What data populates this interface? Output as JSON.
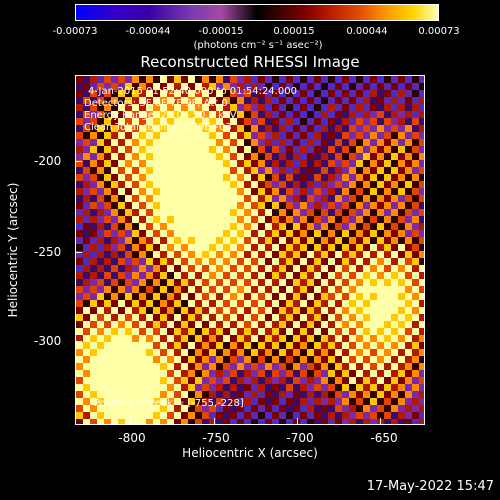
{
  "colorbar": {
    "ticks": [
      "-0.00073",
      "-0.00044",
      "-0.00015",
      "0.00015",
      "0.00044",
      "0.00073"
    ],
    "unit": "(photons cm⁻² s⁻¹ asec⁻²)"
  },
  "title": "Reconstructed RHESSI Image",
  "info": {
    "time": "4-Jan-2015 01:52:40.000 to 01:54:24.000",
    "detectors": "Detectors: 3F 6F 7F 9F, Att 0",
    "energy": "Energy Range: 25.0 - 50.0 keV",
    "clean": "Clean     Total counts: 1.70E+03",
    "peak": "Position of Peak = [-755,-228]"
  },
  "axes": {
    "xlabel": "Heliocentric X (arcsec)",
    "ylabel": "Heliocentric Y (arcsec)",
    "xticks": [
      "-800",
      "-750",
      "-700",
      "-650"
    ],
    "yticks": [
      "-200",
      "-250",
      "-300"
    ]
  },
  "timestamp": "17-May-2022 15:47"
}
